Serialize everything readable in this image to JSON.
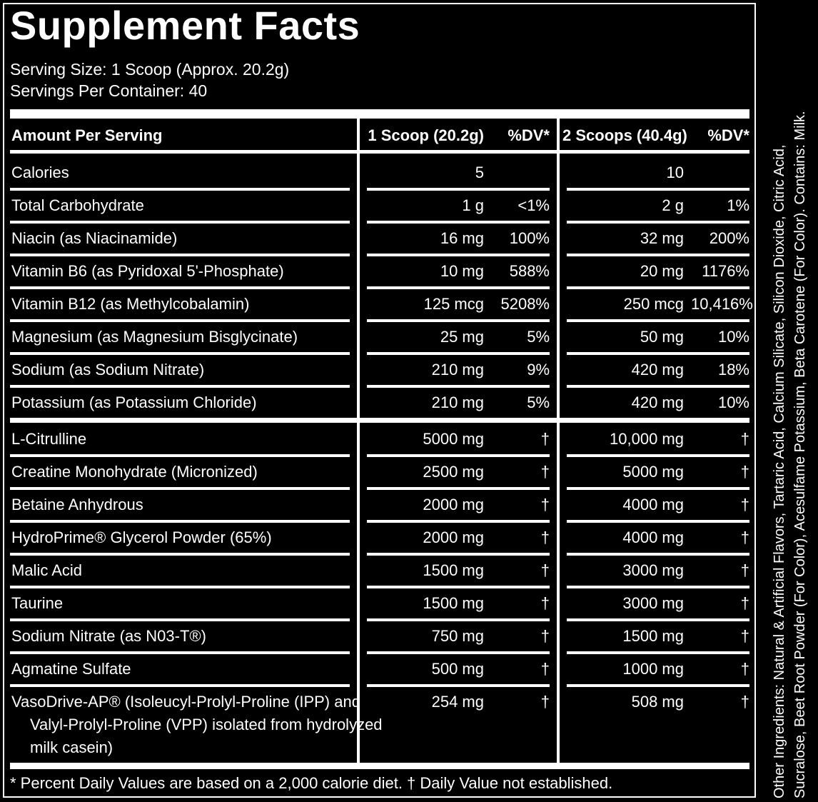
{
  "title": "Supplement Facts",
  "serving_size": "Serving Size: 1 Scoop (Approx. 20.2g)",
  "servings_per_container": "Servings Per Container: 40",
  "header": {
    "amount": "Amount Per Serving",
    "col1": "1 Scoop (20.2g)",
    "col1_dv": "%DV*",
    "col2": "2 Scoops (40.4g)",
    "col2_dv": "%DV*"
  },
  "rows": [
    {
      "name": "Calories",
      "a1": "5",
      "d1": "",
      "a2": "10",
      "d2": ""
    },
    {
      "name": "Total Carbohydrate",
      "a1": "1 g",
      "d1": "<1%",
      "a2": "2 g",
      "d2": "1%"
    },
    {
      "name": "Niacin (as Niacinamide)",
      "a1": "16 mg",
      "d1": "100%",
      "a2": "32 mg",
      "d2": "200%"
    },
    {
      "name": "Vitamin B6 (as Pyridoxal 5'-Phosphate)",
      "a1": "10 mg",
      "d1": "588%",
      "a2": "20 mg",
      "d2": "1176%"
    },
    {
      "name": "Vitamin B12 (as Methylcobalamin)",
      "a1": "125 mcg",
      "d1": "5208%",
      "a2": "250 mcg",
      "d2": "10,416%"
    },
    {
      "name": "Magnesium (as Magnesium Bisglycinate)",
      "a1": "25 mg",
      "d1": "5%",
      "a2": "50 mg",
      "d2": "10%"
    },
    {
      "name": "Sodium (as Sodium Nitrate)",
      "a1": "210 mg",
      "d1": "9%",
      "a2": "420 mg",
      "d2": "18%"
    },
    {
      "name": "Potassium (as Potassium Chloride)",
      "a1": "210 mg",
      "d1": "5%",
      "a2": "420 mg",
      "d2": "10%"
    },
    {
      "name": "L-Citrulline",
      "a1": "5000 mg",
      "d1": "†",
      "a2": "10,000 mg",
      "d2": "†"
    },
    {
      "name": "Creatine Monohydrate (Micronized)",
      "a1": "2500 mg",
      "d1": "†",
      "a2": "5000 mg",
      "d2": "†"
    },
    {
      "name": "Betaine Anhydrous",
      "a1": "2000 mg",
      "d1": "†",
      "a2": "4000 mg",
      "d2": "†"
    },
    {
      "name": "HydroPrime® Glycerol Powder (65%)",
      "a1": "2000 mg",
      "d1": "†",
      "a2": "4000 mg",
      "d2": "†"
    },
    {
      "name": "Malic Acid",
      "a1": "1500 mg",
      "d1": "†",
      "a2": "3000 mg",
      "d2": "†"
    },
    {
      "name": "Taurine",
      "a1": "1500 mg",
      "d1": "†",
      "a2": "3000 mg",
      "d2": "†"
    },
    {
      "name": "Sodium Nitrate (as N03-T®)",
      "a1": "750 mg",
      "d1": "†",
      "a2": "1500 mg",
      "d2": "†"
    },
    {
      "name": "Agmatine Sulfate",
      "a1": "500 mg",
      "d1": "†",
      "a2": "1000 mg",
      "d2": "†"
    },
    {
      "name": "VasoDrive-AP® (Isoleucyl-Prolyl-Proline (IPP) and",
      "cont": [
        "Valyl-Prolyl-Proline (VPP) isolated from hydrolyzed",
        "milk casein)"
      ],
      "a1": "254 mg",
      "d1": "†",
      "a2": "508 mg",
      "d2": "†"
    }
  ],
  "footnote": "* Percent Daily Values are based on a 2,000 calorie diet. † Daily Value not established.",
  "other_ingredients": [
    "Other Ingredients: Natural & Artificial Flavors, Tartaric Acid, Calcium Silicate, Silicon Dioxide, Citric Acid,",
    "Sucralose, Beet Root Powder (For Color), Acesulfame Potassium, Beta Carotene (For Color). Contains: Milk."
  ]
}
